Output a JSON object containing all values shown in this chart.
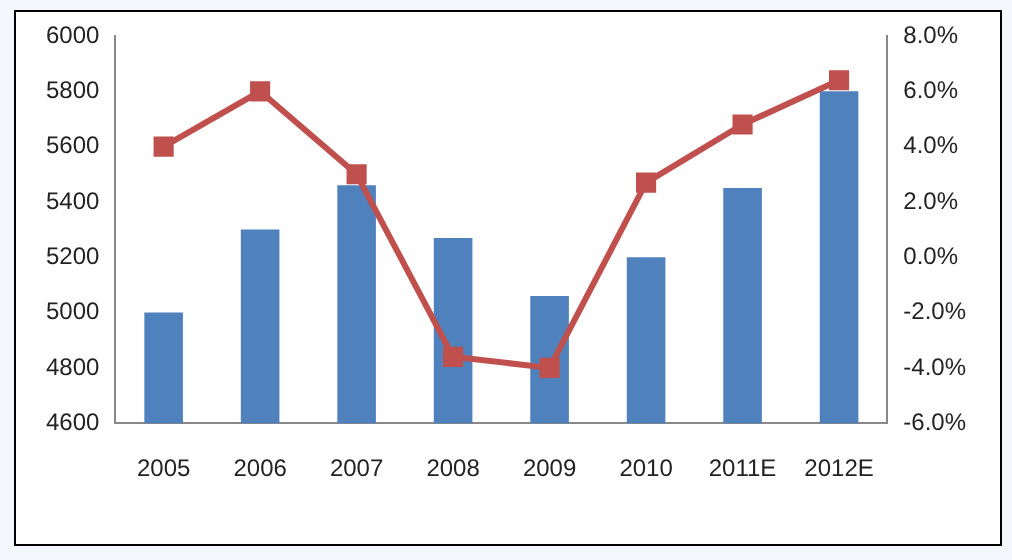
{
  "chart_data": {
    "type": "bar",
    "categories": [
      "2005",
      "2006",
      "2007",
      "2008",
      "2009",
      "2010",
      "2011E",
      "2012E"
    ],
    "series": [
      {
        "color": "#4f81bd",
        "values": [
          5000,
          5300,
          5460,
          5270,
          5060,
          5200,
          5450,
          5800
        ]
      },
      {
        "type": "line",
        "axis": "y2",
        "color": "#c0504d",
        "values": [
          4.0,
          6.0,
          3.0,
          -3.6,
          -4.0,
          2.7,
          4.8,
          6.4
        ]
      }
    ],
    "ylim": [
      4600,
      6000
    ],
    "yticks": [
      4600,
      4800,
      5000,
      5200,
      5400,
      5600,
      5800,
      6000
    ],
    "y2lim": [
      -6,
      8
    ],
    "y2ticks": [
      {
        "value": -6,
        "label": "-6.0%"
      },
      {
        "value": -4,
        "label": "-4.0%"
      },
      {
        "value": -2,
        "label": "-2.0%"
      },
      {
        "value": 0,
        "label": "0.0%"
      },
      {
        "value": 2,
        "label": "2.0%"
      },
      {
        "value": 4,
        "label": "4.0%"
      },
      {
        "value": 6,
        "label": "6.0%"
      },
      {
        "value": 8,
        "label": "8.0%"
      }
    ],
    "grid": false,
    "legend": false,
    "marker": "square",
    "line_style": "solid"
  }
}
